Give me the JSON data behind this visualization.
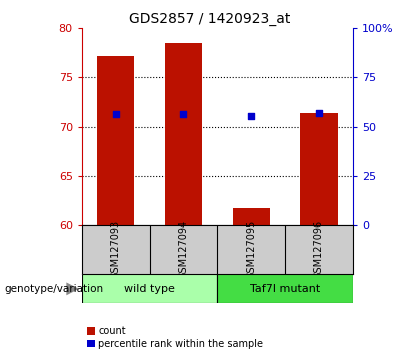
{
  "title": "GDS2857 / 1420923_at",
  "samples": [
    "GSM127093",
    "GSM127094",
    "GSM127095",
    "GSM127096"
  ],
  "red_values": [
    77.2,
    78.5,
    61.7,
    71.4
  ],
  "blue_values": [
    71.3,
    71.3,
    71.1,
    71.4
  ],
  "ymin": 60,
  "ymax": 80,
  "yticks_left": [
    60,
    65,
    70,
    75,
    80
  ],
  "yticks_right": [
    0,
    25,
    50,
    75,
    100
  ],
  "groups": [
    {
      "label": "wild type",
      "samples": [
        0,
        1
      ],
      "color": "#AAFFAA"
    },
    {
      "label": "Taf7l mutant",
      "samples": [
        2,
        3
      ],
      "color": "#44DD44"
    }
  ],
  "bar_color": "#BB1100",
  "blue_color": "#0000CC",
  "bg_color": "#CCCCCC",
  "plot_bg": "#FFFFFF",
  "left_axis_color": "#CC0000",
  "right_axis_color": "#0000CC",
  "bar_width": 0.55,
  "group_label": "genotype/variation",
  "legend_labels": [
    "count",
    "percentile rank within the sample"
  ]
}
